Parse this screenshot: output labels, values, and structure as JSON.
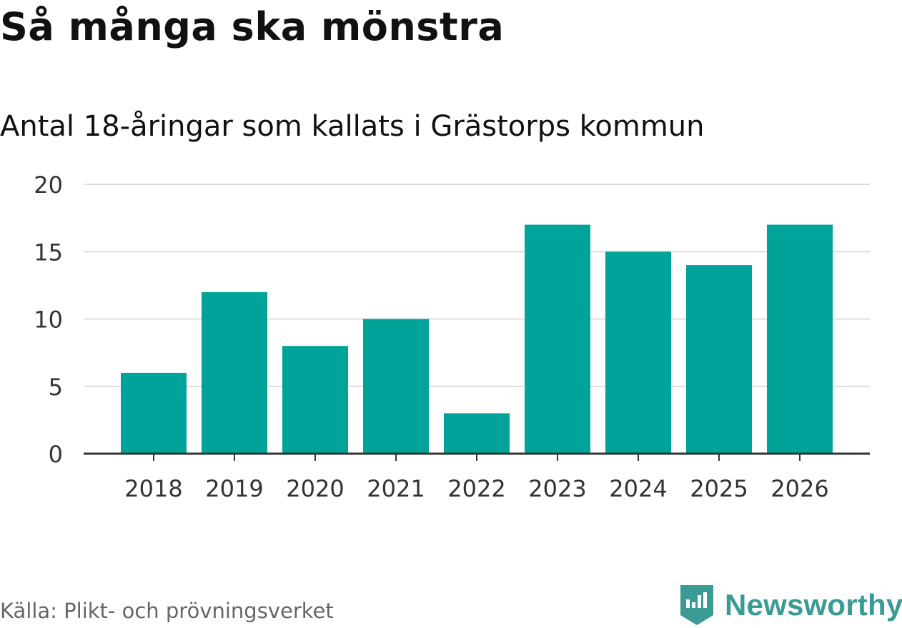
{
  "title": "Så många ska mönstra",
  "subtitle": "Antal 18-åringar som kallats i Grästorps kommun",
  "source": "Källa: Plikt- och prövningsverket",
  "brand": {
    "name": "Newsworthy",
    "color": "#3a9b94",
    "icon": "newsworthy-logo-icon"
  },
  "colors": {
    "bar": "#00a39a",
    "grid": "#dddddd",
    "axis": "#333333",
    "text": "#333333"
  },
  "chart_data": {
    "type": "bar",
    "title": "Så många ska mönstra",
    "subtitle": "Antal 18-åringar som kallats i Grästorps kommun",
    "categories": [
      "2018",
      "2019",
      "2020",
      "2021",
      "2022",
      "2023",
      "2024",
      "2025",
      "2026"
    ],
    "values": [
      6,
      12,
      8,
      10,
      3,
      17,
      15,
      14,
      17
    ],
    "yticks": [
      "0",
      "5",
      "10",
      "15",
      "20"
    ],
    "ytick_values": [
      0,
      5,
      10,
      15,
      20
    ],
    "ylim": [
      0,
      20
    ],
    "xlabel": "",
    "ylabel": "",
    "grid": true
  }
}
